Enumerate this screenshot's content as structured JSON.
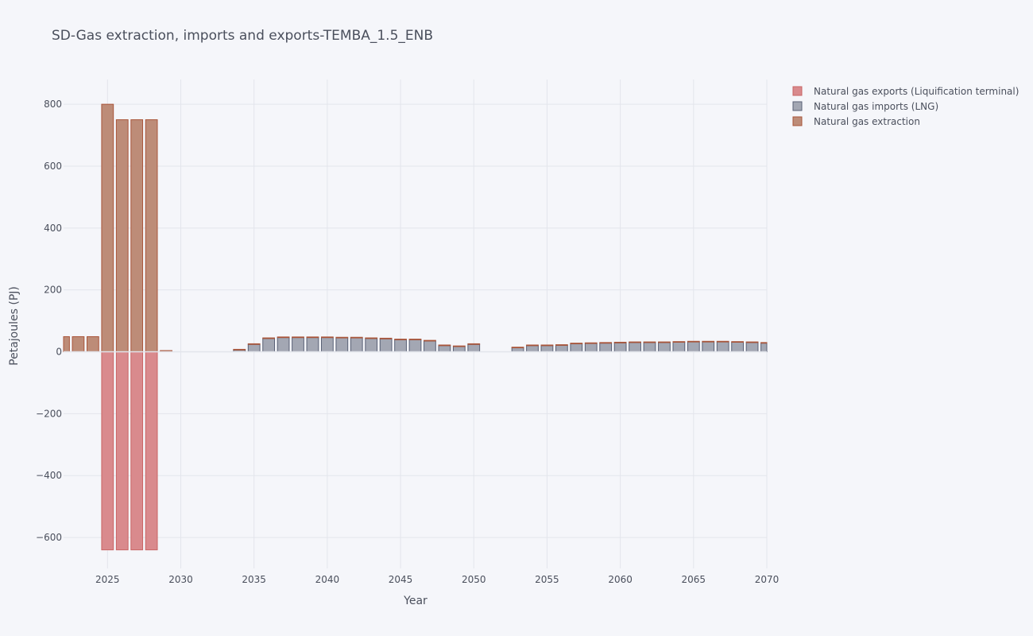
{
  "chart_data": {
    "type": "bar",
    "barmode": "relative",
    "title": "SD-Gas extraction, imports and exports-TEMBA_1.5_ENB",
    "xlabel": "Year",
    "ylabel": "Petajoules (PJ)",
    "xlim": [
      2022,
      2070
    ],
    "ylim": [
      -700,
      880
    ],
    "x_ticks": [
      2025,
      2030,
      2035,
      2040,
      2045,
      2050,
      2055,
      2060,
      2065,
      2070
    ],
    "y_ticks": [
      -600,
      -400,
      -200,
      0,
      200,
      400,
      600,
      800
    ],
    "y_tick_labels": [
      "−600",
      "−400",
      "−200",
      "0",
      "200",
      "400",
      "600",
      "800"
    ],
    "grid": true,
    "legend_position": "top-right",
    "x": [
      2022,
      2023,
      2024,
      2025,
      2026,
      2027,
      2028,
      2029,
      2030,
      2031,
      2032,
      2033,
      2034,
      2035,
      2036,
      2037,
      2038,
      2039,
      2040,
      2041,
      2042,
      2043,
      2044,
      2045,
      2046,
      2047,
      2048,
      2049,
      2050,
      2051,
      2052,
      2053,
      2054,
      2055,
      2056,
      2057,
      2058,
      2059,
      2060,
      2061,
      2062,
      2063,
      2064,
      2065,
      2066,
      2067,
      2068,
      2069,
      2070
    ],
    "series": [
      {
        "name": "Natural gas exports (Liquification terminal)",
        "color": "#d98a8d",
        "stroke": "#c96464",
        "values": [
          0,
          0,
          0,
          -640,
          -640,
          -640,
          -640,
          0,
          0,
          0,
          0,
          0,
          0,
          0,
          0,
          0,
          0,
          0,
          0,
          0,
          0,
          0,
          0,
          0,
          0,
          0,
          0,
          0,
          0,
          0,
          0,
          0,
          0,
          0,
          0,
          0,
          0,
          0,
          0,
          0,
          0,
          0,
          0,
          0,
          0,
          0,
          0,
          0,
          0
        ]
      },
      {
        "name": "Natural gas imports (LNG)",
        "color": "#a3a7b3",
        "stroke": "#596075",
        "values": [
          0,
          0,
          0,
          0,
          0,
          0,
          0,
          0,
          0,
          0,
          0,
          0,
          6,
          24,
          43,
          46,
          46,
          46,
          46,
          45,
          45,
          43,
          42,
          39,
          39,
          35,
          20,
          17,
          24,
          0,
          0,
          13,
          20,
          20,
          21,
          26,
          27,
          28,
          29,
          30,
          30,
          30,
          31,
          32,
          32,
          32,
          31,
          30,
          28
        ]
      },
      {
        "name": "Natural gas extraction",
        "color": "#bd8c78",
        "stroke": "#a9553a",
        "values": [
          49,
          49,
          49,
          800,
          750,
          750,
          750,
          4,
          0,
          0,
          0,
          0,
          2,
          2,
          2,
          2,
          2,
          2,
          2,
          2,
          2,
          2,
          2,
          2,
          2,
          2,
          2,
          2,
          2,
          0,
          0,
          2,
          2,
          2,
          2,
          2,
          2,
          2,
          2,
          2,
          2,
          2,
          2,
          2,
          2,
          2,
          2,
          2,
          2
        ]
      }
    ]
  }
}
